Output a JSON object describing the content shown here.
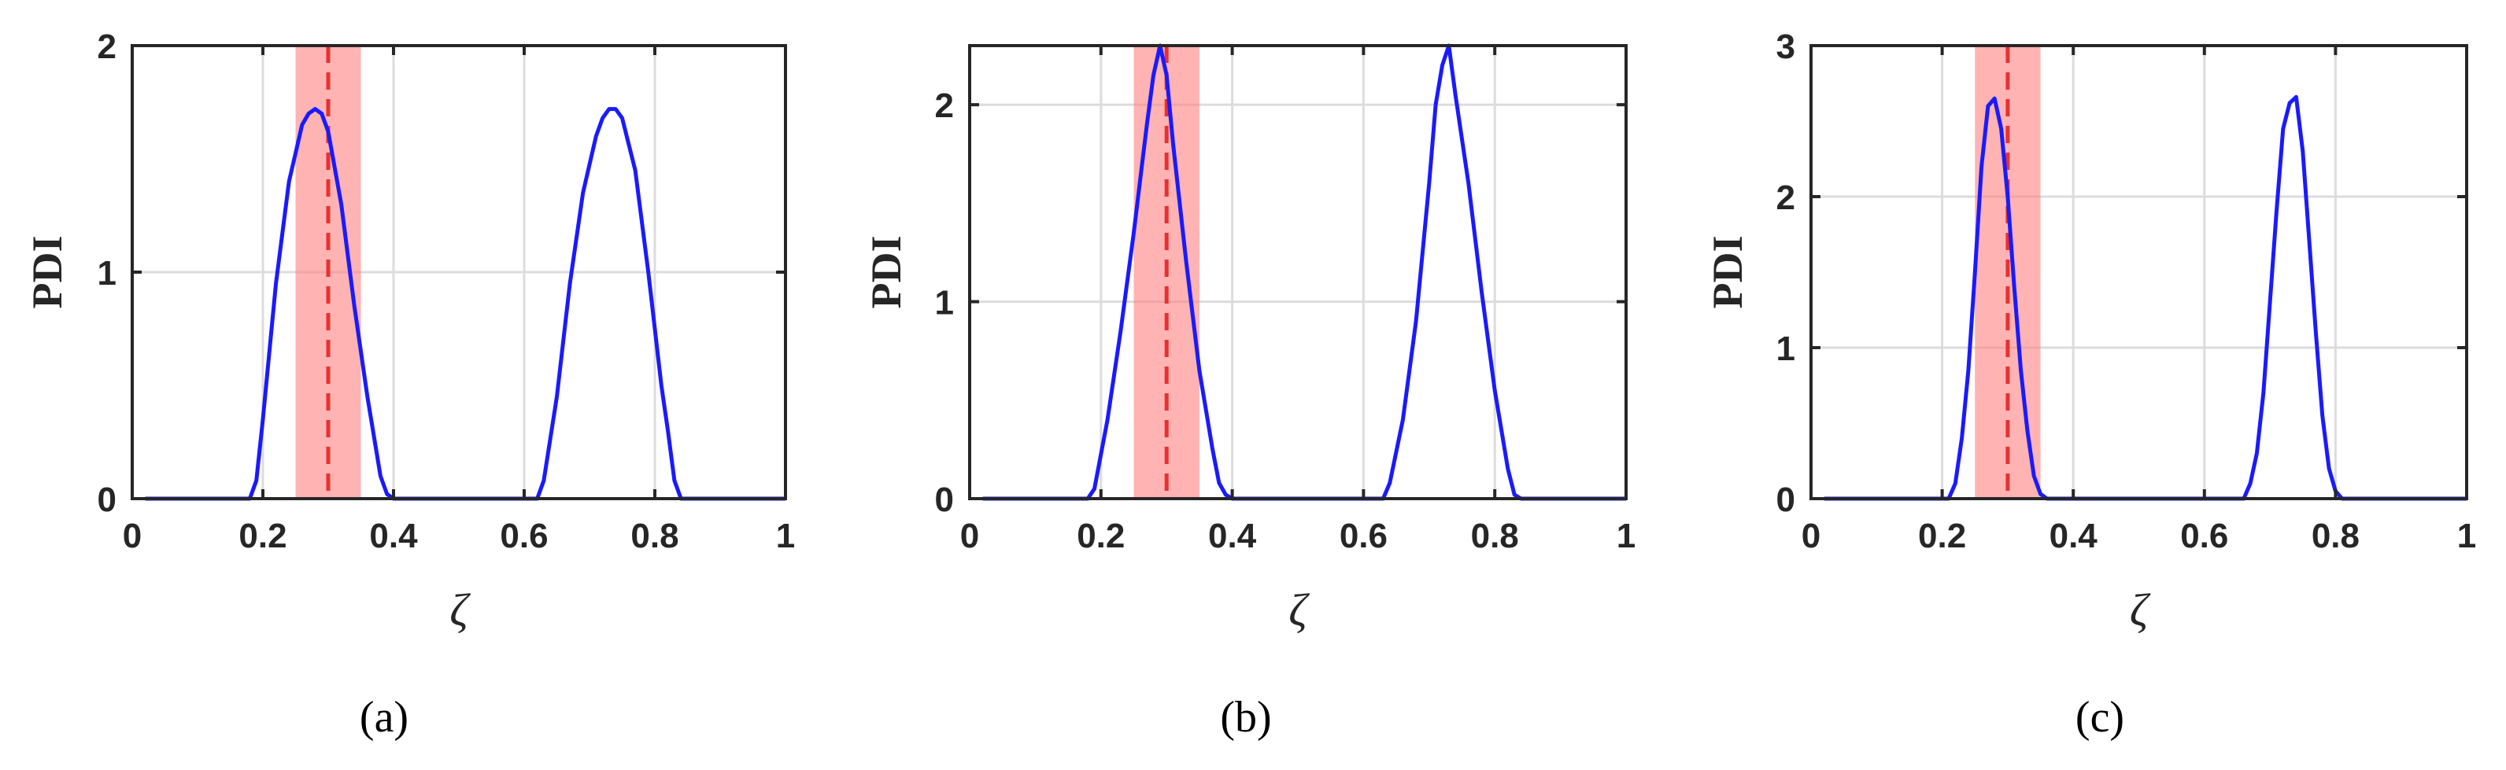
{
  "figure": {
    "colors": {
      "curve": "#1a1aff",
      "band": "#ff8080",
      "marker": "#e83030",
      "axis": "#262626",
      "grid": "#dcdcdc"
    }
  },
  "chart_data": [
    {
      "type": "line",
      "panel_label": "(a)",
      "xlabel": "ζ",
      "ylabel": "PDI",
      "xlim": [
        0,
        1
      ],
      "ylim": [
        0,
        2
      ],
      "xticks": [
        0,
        0.2,
        0.4,
        0.6,
        0.8,
        1
      ],
      "xtick_labels": [
        "0",
        "0.2",
        "0.4",
        "0.6",
        "0.8",
        "1"
      ],
      "yticks": [
        0,
        1,
        2
      ],
      "ytick_labels": [
        "0",
        "1",
        "2"
      ],
      "grid": true,
      "band": [
        0.25,
        0.35
      ],
      "marker_x": 0.3,
      "series": [
        {
          "x": [
            0.02,
            0.18,
            0.19,
            0.2,
            0.22,
            0.24,
            0.26,
            0.27,
            0.28,
            0.29,
            0.3,
            0.32,
            0.34,
            0.36,
            0.38,
            0.39,
            0.4,
            0.5,
            0.6,
            0.62,
            0.63,
            0.65,
            0.67,
            0.69,
            0.71,
            0.72,
            0.73,
            0.74,
            0.75,
            0.77,
            0.79,
            0.81,
            0.82,
            0.83,
            0.84,
            0.85,
            1.0
          ],
          "y": [
            0,
            0,
            0.08,
            0.35,
            0.95,
            1.4,
            1.65,
            1.7,
            1.72,
            1.7,
            1.62,
            1.3,
            0.85,
            0.45,
            0.1,
            0.02,
            0,
            0,
            0,
            0,
            0.08,
            0.45,
            0.95,
            1.35,
            1.6,
            1.68,
            1.72,
            1.72,
            1.68,
            1.45,
            1.0,
            0.5,
            0.3,
            0.08,
            0,
            0,
            0
          ]
        }
      ]
    },
    {
      "type": "line",
      "panel_label": "(b)",
      "xlabel": "ζ",
      "ylabel": "PDI",
      "xlim": [
        0,
        1
      ],
      "ylim": [
        0,
        2.3
      ],
      "xticks": [
        0,
        0.2,
        0.4,
        0.6,
        0.8,
        1
      ],
      "xtick_labels": [
        "0",
        "0.2",
        "0.4",
        "0.6",
        "0.8",
        "1"
      ],
      "yticks": [
        0,
        1,
        2
      ],
      "ytick_labels": [
        "0",
        "1",
        "2"
      ],
      "grid": true,
      "band": [
        0.25,
        0.35
      ],
      "marker_x": 0.3,
      "series": [
        {
          "x": [
            0.02,
            0.18,
            0.19,
            0.21,
            0.23,
            0.25,
            0.27,
            0.28,
            0.29,
            0.3,
            0.31,
            0.33,
            0.35,
            0.37,
            0.38,
            0.39,
            0.4,
            0.5,
            0.6,
            0.63,
            0.64,
            0.66,
            0.68,
            0.7,
            0.71,
            0.72,
            0.73,
            0.74,
            0.76,
            0.78,
            0.8,
            0.82,
            0.83,
            0.84,
            1.0
          ],
          "y": [
            0,
            0,
            0.05,
            0.4,
            0.85,
            1.35,
            1.9,
            2.15,
            2.3,
            2.15,
            1.8,
            1.2,
            0.65,
            0.25,
            0.08,
            0.02,
            0,
            0,
            0,
            0,
            0.08,
            0.4,
            0.9,
            1.6,
            2.0,
            2.2,
            2.3,
            2.05,
            1.6,
            1.05,
            0.55,
            0.15,
            0.02,
            0,
            0
          ]
        }
      ]
    },
    {
      "type": "line",
      "panel_label": "(c)",
      "xlabel": "ζ",
      "ylabel": "PDI",
      "xlim": [
        0,
        1
      ],
      "ylim": [
        0,
        3
      ],
      "xticks": [
        0,
        0.2,
        0.4,
        0.6,
        0.8,
        1
      ],
      "xtick_labels": [
        "0",
        "0.2",
        "0.4",
        "0.6",
        "0.8",
        "1"
      ],
      "yticks": [
        0,
        1,
        2,
        3
      ],
      "ytick_labels": [
        "0",
        "1",
        "2",
        "3"
      ],
      "grid": true,
      "band": [
        0.25,
        0.35
      ],
      "marker_x": 0.3,
      "series": [
        {
          "x": [
            0.02,
            0.21,
            0.22,
            0.23,
            0.24,
            0.25,
            0.26,
            0.27,
            0.28,
            0.29,
            0.3,
            0.31,
            0.32,
            0.33,
            0.34,
            0.35,
            0.36,
            0.5,
            0.66,
            0.67,
            0.68,
            0.69,
            0.7,
            0.71,
            0.72,
            0.73,
            0.74,
            0.75,
            0.76,
            0.77,
            0.78,
            0.79,
            0.8,
            0.81,
            1.0
          ],
          "y": [
            0,
            0,
            0.1,
            0.4,
            0.85,
            1.5,
            2.2,
            2.6,
            2.65,
            2.45,
            2.0,
            1.4,
            0.85,
            0.45,
            0.15,
            0.03,
            0,
            0,
            0,
            0.1,
            0.3,
            0.7,
            1.3,
            1.9,
            2.45,
            2.62,
            2.66,
            2.3,
            1.7,
            1.1,
            0.55,
            0.2,
            0.05,
            0,
            0
          ]
        }
      ]
    }
  ]
}
